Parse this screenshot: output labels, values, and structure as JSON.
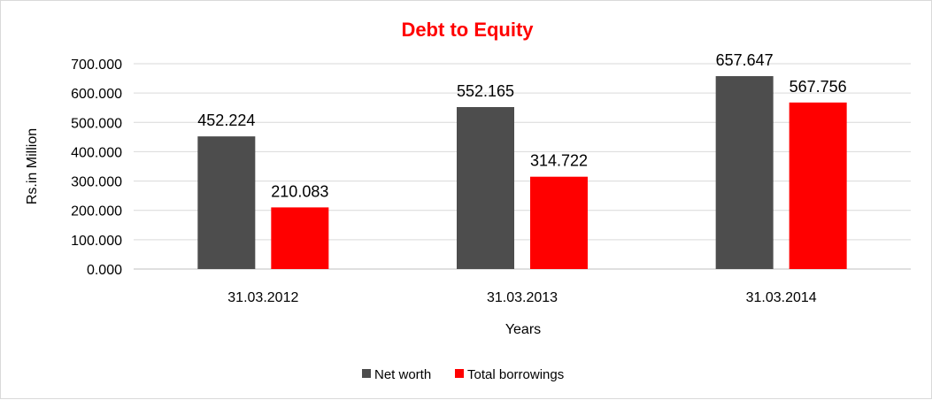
{
  "chart_data": {
    "type": "bar",
    "title": "Debt to Equity",
    "xlabel": "Years",
    "ylabel": "Rs.in Million",
    "categories": [
      "31.03.2012",
      "31.03.2013",
      "31.03.2014"
    ],
    "series": [
      {
        "name": "Net worth",
        "values": [
          452.224,
          552.165,
          657.647
        ],
        "color": "#4d4d4d",
        "labels": [
          "452.224",
          "552.165",
          "657.647"
        ]
      },
      {
        "name": "Total borrowings",
        "values": [
          210.083,
          314.722,
          567.756
        ],
        "color": "#ff0000",
        "labels": [
          "210.083",
          "314.722",
          "567.756"
        ]
      }
    ],
    "ylim": [
      0,
      700
    ],
    "yticks": [
      0,
      100,
      200,
      300,
      400,
      500,
      600,
      700
    ],
    "ytick_labels": [
      "0.000",
      "100.000",
      "200.000",
      "300.000",
      "400.000",
      "500.000",
      "600.000",
      "700.000"
    ],
    "grid": true,
    "legend_position": "bottom",
    "title_color": "#ff0000"
  }
}
